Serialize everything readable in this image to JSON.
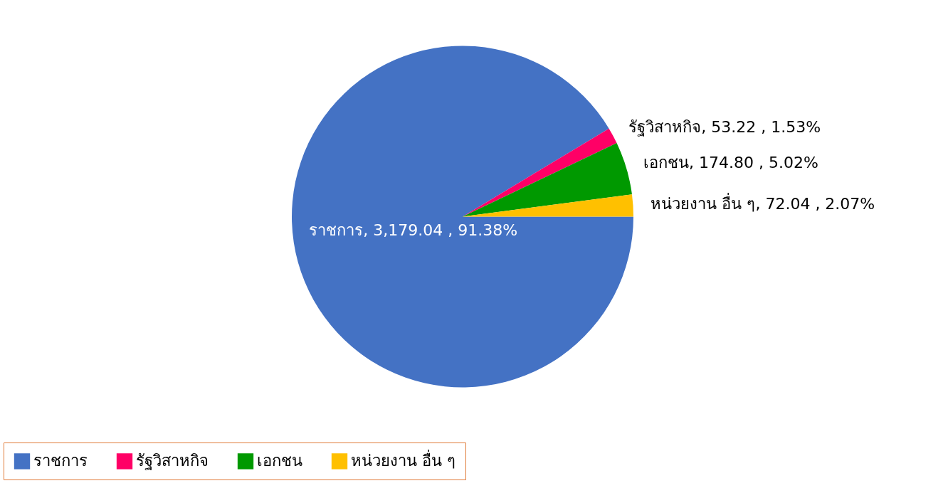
{
  "chart_data": {
    "type": "pie",
    "categories": [
      "ราชการ",
      "รัฐวิสาหกิจ",
      "เอกชน",
      "หน่วยงาน อื่น ๆ"
    ],
    "values": [
      3179.04,
      53.22,
      174.8,
      72.04
    ],
    "colors": [
      "#4472c4",
      "#ff0066",
      "#009900",
      "#ffc000"
    ],
    "value_labels": [
      "ราชการ,  3,179.04 , 91.38%",
      "รัฐวิสาหกิจ,  53.22 , 1.53%",
      "เอกชน,  174.80 , 5.02%",
      "หน่วยงาน อื่น ๆ, 72.04 , 2.07%"
    ],
    "legend": "bottom"
  }
}
